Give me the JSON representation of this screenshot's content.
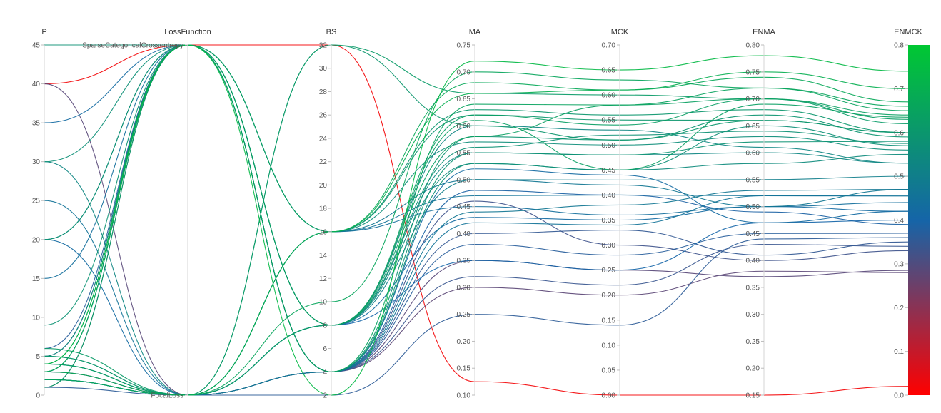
{
  "chart_data": {
    "type": "parallel_coordinates",
    "color_by": "ENMCK",
    "colorscale": [
      "#ff0000",
      "#1565a8",
      "#00c832"
    ],
    "axes": [
      {
        "key": "P",
        "label": "P",
        "kind": "numeric",
        "range": [
          0,
          45
        ],
        "ticks": [
          0,
          5,
          10,
          15,
          20,
          25,
          30,
          35,
          40,
          45
        ]
      },
      {
        "key": "LossFunction",
        "label": "LossFunction",
        "kind": "categorical",
        "categories": [
          "FocalLoss",
          "SparseCategoricalCrossentropy"
        ]
      },
      {
        "key": "BS",
        "label": "BS",
        "kind": "numeric",
        "range": [
          2,
          32
        ],
        "ticks": [
          2,
          4,
          6,
          8,
          10,
          12,
          14,
          16,
          18,
          20,
          22,
          24,
          26,
          28,
          30,
          32
        ]
      },
      {
        "key": "MA",
        "label": "MA",
        "kind": "numeric",
        "range": [
          0.1,
          0.75
        ],
        "ticks": [
          0.1,
          0.15,
          0.2,
          0.25,
          0.3,
          0.35,
          0.4,
          0.45,
          0.5,
          0.55,
          0.6,
          0.65,
          0.7,
          0.75
        ]
      },
      {
        "key": "MCK",
        "label": "MCK",
        "kind": "numeric",
        "range": [
          0,
          0.7
        ],
        "ticks": [
          0,
          0.05,
          0.1,
          0.15,
          0.2,
          0.25,
          0.3,
          0.35,
          0.4,
          0.45,
          0.5,
          0.55,
          0.6,
          0.65,
          0.7
        ]
      },
      {
        "key": "ENMA",
        "label": "ENMA",
        "kind": "numeric",
        "range": [
          0.15,
          0.8
        ],
        "ticks": [
          0.15,
          0.2,
          0.25,
          0.3,
          0.35,
          0.4,
          0.45,
          0.5,
          0.55,
          0.6,
          0.65,
          0.7,
          0.75,
          0.8
        ]
      },
      {
        "key": "ENMCK",
        "label": "ENMCK",
        "kind": "numeric",
        "range": [
          0,
          0.8
        ],
        "ticks": [
          0,
          0.1,
          0.2,
          0.3,
          0.4,
          0.5,
          0.6,
          0.7,
          0.8
        ],
        "colorbar": true
      }
    ],
    "records": [
      [
        40,
        "SparseCategoricalCrossentropy",
        32,
        0.125,
        0.0,
        0.15,
        0.02
      ],
      [
        1,
        "FocalLoss",
        2,
        0.25,
        0.14,
        0.44,
        0.36
      ],
      [
        3,
        "FocalLoss",
        4,
        0.3,
        0.2,
        0.38,
        0.28
      ],
      [
        40,
        "FocalLoss",
        4,
        0.35,
        0.25,
        0.37,
        0.285
      ],
      [
        3,
        "FocalLoss",
        4,
        0.32,
        0.22,
        0.43,
        0.34
      ],
      [
        6,
        "SparseCategoricalCrossentropy",
        4,
        0.38,
        0.28,
        0.45,
        0.37
      ],
      [
        2,
        "FocalLoss",
        8,
        0.35,
        0.25,
        0.47,
        0.4
      ],
      [
        5,
        "SparseCategoricalCrossentropy",
        4,
        0.4,
        0.33,
        0.41,
        0.35
      ],
      [
        25,
        "FocalLoss",
        4,
        0.42,
        0.34,
        0.52,
        0.455
      ],
      [
        35,
        "SparseCategoricalCrossentropy",
        8,
        0.43,
        0.35,
        0.5,
        0.42
      ],
      [
        15,
        "SparseCategoricalCrossentropy",
        16,
        0.45,
        0.36,
        0.5,
        0.44
      ],
      [
        2,
        "FocalLoss",
        16,
        0.47,
        0.4,
        0.52,
        0.455
      ],
      [
        3,
        "SparseCategoricalCrossentropy",
        4,
        0.48,
        0.4,
        0.49,
        0.39
      ],
      [
        4,
        "FocalLoss",
        8,
        0.5,
        0.43,
        0.55,
        0.5
      ],
      [
        20,
        "FocalLoss",
        4,
        0.52,
        0.44,
        0.47,
        0.42
      ],
      [
        5,
        "SparseCategoricalCrossentropy",
        8,
        0.53,
        0.45,
        0.58,
        0.55
      ],
      [
        30,
        "SparseCategoricalCrossentropy",
        4,
        0.53,
        0.45,
        0.65,
        0.57
      ],
      [
        2,
        "FocalLoss",
        8,
        0.55,
        0.48,
        0.6,
        0.53
      ],
      [
        9,
        "SparseCategoricalCrossentropy",
        4,
        0.55,
        0.48,
        0.62,
        0.58
      ],
      [
        4,
        "FocalLoss",
        16,
        0.57,
        0.5,
        0.63,
        0.56
      ],
      [
        20,
        "SparseCategoricalCrossentropy",
        4,
        0.58,
        0.51,
        0.67,
        0.59
      ],
      [
        5,
        "FocalLoss",
        32,
        0.6,
        0.51,
        0.66,
        0.6
      ],
      [
        30,
        "FocalLoss",
        8,
        0.6,
        0.53,
        0.61,
        0.53
      ],
      [
        3,
        "SparseCategoricalCrossentropy",
        8,
        0.62,
        0.54,
        0.7,
        0.63
      ],
      [
        2,
        "FocalLoss",
        16,
        0.63,
        0.56,
        0.68,
        0.6
      ],
      [
        4,
        "SparseCategoricalCrossentropy",
        4,
        0.64,
        0.58,
        0.72,
        0.65
      ],
      [
        6,
        "FocalLoss",
        32,
        0.66,
        0.6,
        0.7,
        0.62
      ],
      [
        3,
        "SparseCategoricalCrossentropy",
        16,
        0.68,
        0.61,
        0.74,
        0.67
      ],
      [
        2,
        "FocalLoss",
        10,
        0.7,
        0.63,
        0.72,
        0.66
      ],
      [
        4,
        "SparseCategoricalCrossentropy",
        2,
        0.72,
        0.65,
        0.78,
        0.74
      ],
      [
        5,
        "FocalLoss",
        16,
        0.62,
        0.55,
        0.66,
        0.6
      ],
      [
        1,
        "SparseCategoricalCrossentropy",
        8,
        0.58,
        0.58,
        0.7,
        0.64
      ],
      [
        2,
        "FocalLoss",
        4,
        0.44,
        0.38,
        0.53,
        0.47
      ],
      [
        45,
        "SparseCategoricalCrossentropy",
        8,
        0.56,
        0.52,
        0.64,
        0.575
      ],
      [
        3,
        "FocalLoss",
        16,
        0.66,
        0.61,
        0.75,
        0.7
      ],
      [
        4,
        "FocalLoss",
        8,
        0.61,
        0.45,
        0.69,
        0.635
      ],
      [
        20,
        "SparseCategoricalCrossentropy",
        16,
        0.5,
        0.42,
        0.5,
        0.47
      ],
      [
        1,
        "SparseCategoricalCrossentropy",
        4,
        0.46,
        0.3,
        0.4,
        0.33
      ]
    ]
  }
}
